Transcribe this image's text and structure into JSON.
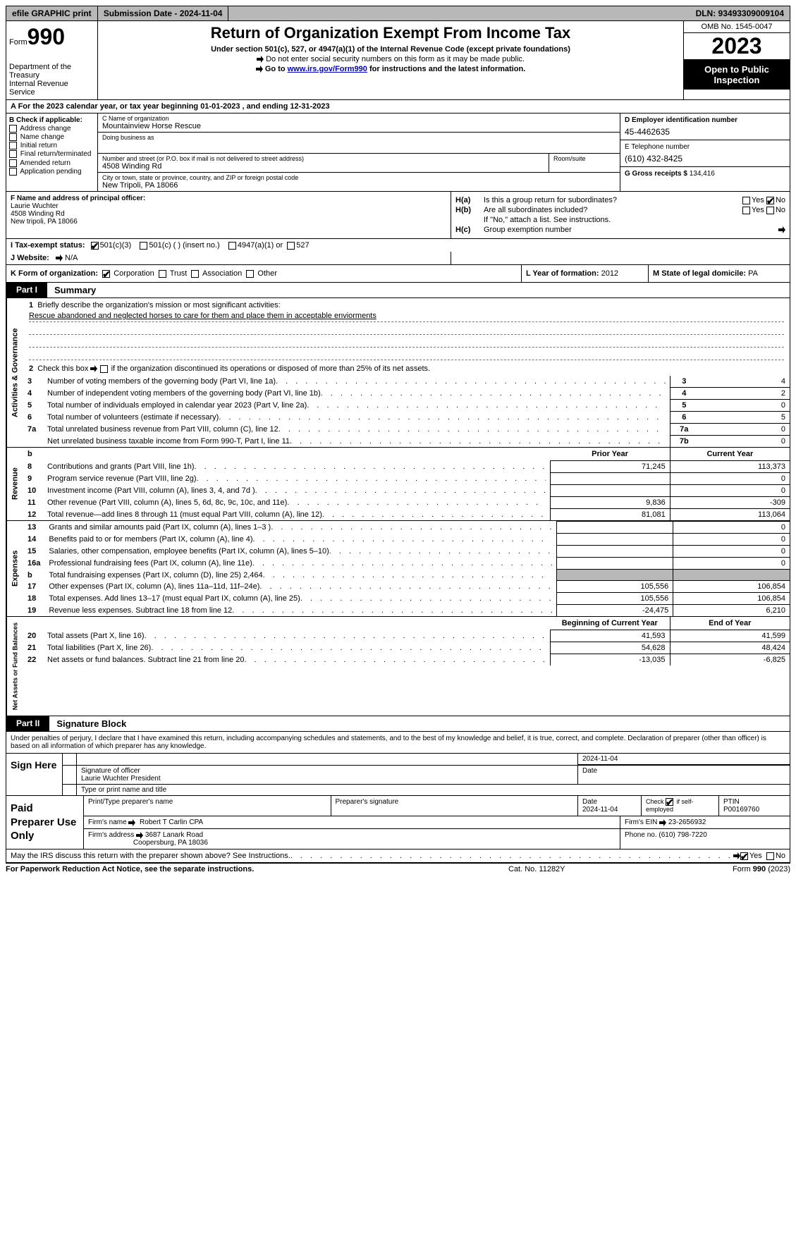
{
  "top_bar": {
    "efile": "efile GRAPHIC print",
    "submission": "Submission Date - 2024-11-04",
    "dln": "DLN: 93493309009104"
  },
  "header": {
    "form_label": "Form",
    "form_number": "990",
    "title": "Return of Organization Exempt From Income Tax",
    "subtitle": "Under section 501(c), 527, or 4947(a)(1) of the Internal Revenue Code (except private foundations)",
    "note1": "Do not enter social security numbers on this form as it may be made public.",
    "note2_pre": "Go to ",
    "note2_link": "www.irs.gov/Form990",
    "note2_post": " for instructions and the latest information.",
    "dept1": "Department of the Treasury",
    "dept2": "Internal Revenue Service",
    "omb": "OMB No. 1545-0047",
    "year": "2023",
    "open": "Open to Public Inspection"
  },
  "period": "A For the 2023 calendar year, or tax year beginning 01-01-2023   , and ending 12-31-2023",
  "colB": {
    "title": "B Check if applicable:",
    "items": [
      "Address change",
      "Name change",
      "Initial return",
      "Final return/terminated",
      "Amended return",
      "Application pending"
    ]
  },
  "colC": {
    "name_lab": "C Name of organization",
    "name": "Mountainview Horse Rescue",
    "dba_lab": "Doing business as",
    "dba": "",
    "street_lab": "Number and street (or P.O. box if mail is not delivered to street address)",
    "street": "4508 Winding Rd",
    "room_lab": "Room/suite",
    "city_lab": "City or town, state or province, country, and ZIP or foreign postal code",
    "city": "New Tripoli, PA  18066"
  },
  "colD": {
    "ein_lab": "D Employer identification number",
    "ein": "45-4462635",
    "phone_lab": "E Telephone number",
    "phone": "(610) 432-8425",
    "gross_lab": "G Gross receipts $",
    "gross": "134,416"
  },
  "rowF": {
    "lab": "F  Name and address of principal officer:",
    "name": "Laurie Wuchter",
    "street": "4508 Winding Rd",
    "city": "New tripoli, PA  18066"
  },
  "rowH": {
    "ha_lab": "H(a)",
    "ha_txt": "Is this a group return for subordinates?",
    "hb_lab": "H(b)",
    "hb_txt": "Are all subordinates included?",
    "hb_note": "If \"No,\" attach a list. See instructions.",
    "hc_lab": "H(c)",
    "hc_txt": "Group exemption number",
    "yes": "Yes",
    "no": "No"
  },
  "statusI": {
    "lab": "I  Tax-exempt status:",
    "o1": "501(c)(3)",
    "o2": "501(c) (  ) (insert no.)",
    "o3": "4947(a)(1) or",
    "o4": "527"
  },
  "rowJ": {
    "lab": "J  Website:",
    "val": "N/A"
  },
  "rowK": {
    "lab": "K Form of organization:",
    "o1": "Corporation",
    "o2": "Trust",
    "o3": "Association",
    "o4": "Other"
  },
  "rowL": {
    "lab": "L Year of formation:",
    "val": "2012"
  },
  "rowM": {
    "lab": "M State of legal domicile:",
    "val": "PA"
  },
  "part1": {
    "pill": "Part I",
    "title": "Summary"
  },
  "gov_label": "Activities & Governance",
  "gov": {
    "l1_lab": "1",
    "l1_txt": "Briefly describe the organization's mission or most significant activities:",
    "l1_val": "Rescue abandoned and neglected horses to care for them and place them in acceptable enviorments",
    "l2_lab": "2",
    "l2_txt": "Check this box        if the organization discontinued its operations or disposed of more than 25% of its net assets.",
    "rows": [
      {
        "n": "3",
        "desc": "Number of voting members of the governing body (Part VI, line 1a)",
        "rn": "3",
        "rv": "4"
      },
      {
        "n": "4",
        "desc": "Number of independent voting members of the governing body (Part VI, line 1b)",
        "rn": "4",
        "rv": "2"
      },
      {
        "n": "5",
        "desc": "Total number of individuals employed in calendar year 2023 (Part V, line 2a)",
        "rn": "5",
        "rv": "0"
      },
      {
        "n": "6",
        "desc": "Total number of volunteers (estimate if necessary)",
        "rn": "6",
        "rv": "5"
      },
      {
        "n": "7a",
        "desc": "Total unrelated business revenue from Part VIII, column (C), line 12",
        "rn": "7a",
        "rv": "0"
      },
      {
        "n": "",
        "desc": "Net unrelated business taxable income from Form 990-T, Part I, line 11",
        "rn": "7b",
        "rv": "0"
      }
    ]
  },
  "rev_label": "Revenue",
  "rev_header": {
    "b": "b",
    "py": "Prior Year",
    "cy": "Current Year"
  },
  "rev_rows": [
    {
      "n": "8",
      "desc": "Contributions and grants (Part VIII, line 1h)",
      "py": "71,245",
      "cy": "113,373"
    },
    {
      "n": "9",
      "desc": "Program service revenue (Part VIII, line 2g)",
      "py": "",
      "cy": "0"
    },
    {
      "n": "10",
      "desc": "Investment income (Part VIII, column (A), lines 3, 4, and 7d )",
      "py": "",
      "cy": "0"
    },
    {
      "n": "11",
      "desc": "Other revenue (Part VIII, column (A), lines 5, 6d, 8c, 9c, 10c, and 11e)",
      "py": "9,836",
      "cy": "-309"
    },
    {
      "n": "12",
      "desc": "Total revenue—add lines 8 through 11 (must equal Part VIII, column (A), line 12)",
      "py": "81,081",
      "cy": "113,064"
    }
  ],
  "exp_label": "Expenses",
  "exp_rows": [
    {
      "n": "13",
      "desc": "Grants and similar amounts paid (Part IX, column (A), lines 1–3 )",
      "py": "",
      "cy": "0",
      "shade": false
    },
    {
      "n": "14",
      "desc": "Benefits paid to or for members (Part IX, column (A), line 4)",
      "py": "",
      "cy": "0",
      "shade": false
    },
    {
      "n": "15",
      "desc": "Salaries, other compensation, employee benefits (Part IX, column (A), lines 5–10)",
      "py": "",
      "cy": "0",
      "shade": false
    },
    {
      "n": "16a",
      "desc": "Professional fundraising fees (Part IX, column (A), line 11e)",
      "py": "",
      "cy": "0",
      "shade": false
    },
    {
      "n": "b",
      "desc": "Total fundraising expenses (Part IX, column (D), line 25) 2,464",
      "py": "",
      "cy": "",
      "shade": true
    },
    {
      "n": "17",
      "desc": "Other expenses (Part IX, column (A), lines 11a–11d, 11f–24e)",
      "py": "105,556",
      "cy": "106,854",
      "shade": false
    },
    {
      "n": "18",
      "desc": "Total expenses. Add lines 13–17 (must equal Part IX, column (A), line 25)",
      "py": "105,556",
      "cy": "106,854",
      "shade": false
    },
    {
      "n": "19",
      "desc": "Revenue less expenses. Subtract line 18 from line 12",
      "py": "-24,475",
      "cy": "6,210",
      "shade": false
    }
  ],
  "na_label": "Net Assets or Fund Balances",
  "na_header": {
    "py": "Beginning of Current Year",
    "cy": "End of Year"
  },
  "na_rows": [
    {
      "n": "20",
      "desc": "Total assets (Part X, line 16)",
      "py": "41,593",
      "cy": "41,599"
    },
    {
      "n": "21",
      "desc": "Total liabilities (Part X, line 26)",
      "py": "54,628",
      "cy": "48,424"
    },
    {
      "n": "22",
      "desc": "Net assets or fund balances. Subtract line 21 from line 20",
      "py": "-13,035",
      "cy": "-6,825"
    }
  ],
  "part2": {
    "pill": "Part II",
    "title": "Signature Block"
  },
  "declare": "Under penalties of perjury, I declare that I have examined this return, including accompanying schedules and statements, and to the best of my knowledge and belief, it is true, correct, and complete. Declaration of preparer (other than officer) is based on all information of which preparer has any knowledge.",
  "sign": {
    "label": "Sign Here",
    "sig_lab": "Signature of officer",
    "name": "Laurie Wuchter  President",
    "type_lab": "Type or print name and title",
    "date_lab": "Date",
    "date": "2024-11-04"
  },
  "prep": {
    "label": "Paid Preparer Use Only",
    "name_lab": "Print/Type preparer's name",
    "sig_lab": "Preparer's signature",
    "date_lab": "Date",
    "date": "2024-11-04",
    "self_lab": "Check         if self-employed",
    "ptin_lab": "PTIN",
    "ptin": "P00169760",
    "firm_name_lab": "Firm's name",
    "firm_name": "Robert T Carlin CPA",
    "firm_ein_lab": "Firm's EIN",
    "firm_ein": "23-2656932",
    "firm_addr_lab": "Firm's address",
    "firm_addr1": "3687 Lanark Road",
    "firm_addr2": "Coopersburg, PA  18036",
    "phone_lab": "Phone no.",
    "phone": "(610) 798-7220"
  },
  "discuss": {
    "txt": "May the IRS discuss this return with the preparer shown above? See Instructions.",
    "yes": "Yes",
    "no": "No"
  },
  "footer": {
    "left": "For Paperwork Reduction Act Notice, see the separate instructions.",
    "mid": "Cat. No. 11282Y",
    "right_pre": "Form ",
    "right_form": "990",
    "right_post": " (2023)"
  },
  "colors": {
    "border": "#000000",
    "grey_bg": "#b8b8b8",
    "link": "#0000cc",
    "dark": "#000000"
  }
}
